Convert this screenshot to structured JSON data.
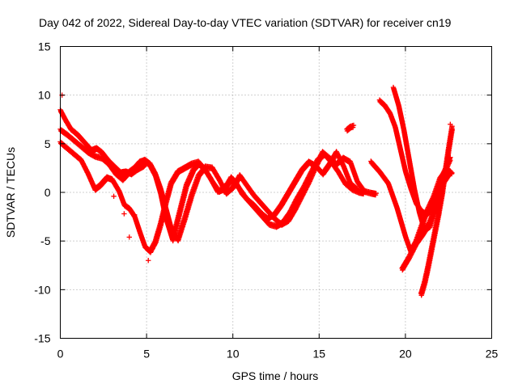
{
  "chart_data": {
    "type": "scatter",
    "title": "Day 042 of 2022, Sidereal Day-to-day VTEC variation (SDTVAR) for receiver cn19",
    "xlabel": "GPS time / hours",
    "ylabel": "SDTVAR / TECUs",
    "xlim": [
      0,
      25
    ],
    "ylim": [
      -15,
      15
    ],
    "xticks": [
      0,
      5,
      10,
      15,
      20,
      25
    ],
    "yticks": [
      -15,
      -10,
      -5,
      0,
      5,
      10,
      15
    ],
    "grid": true,
    "marker": "+",
    "color": "#ff0000",
    "series": [
      {
        "name": "track-1",
        "x": [
          0.0,
          0.3,
          0.6,
          1.0,
          1.4,
          1.8,
          2.1,
          2.4,
          2.8,
          3.2,
          3.5,
          3.8,
          4.1,
          4.4,
          4.8,
          5.0,
          5.2,
          5.5,
          5.8,
          6.1,
          6.5,
          6.9,
          7.3,
          7.7,
          8.0,
          8.3,
          8.7,
          9.1,
          9.5,
          9.9,
          10.2,
          10.5,
          10.9,
          11.3,
          11.7,
          12.1,
          12.5,
          12.9,
          13.3,
          13.7,
          14.1,
          14.5,
          14.9,
          15.3,
          15.7,
          16.1,
          16.5,
          16.9,
          17.3,
          17.6
        ],
        "y": [
          8.5,
          7.5,
          6.6,
          6.0,
          5.2,
          4.4,
          4.6,
          4.2,
          3.3,
          2.6,
          2.1,
          2.2,
          2.0,
          2.4,
          2.8,
          3.2,
          2.8,
          1.8,
          0.0,
          -2.5,
          -4.8,
          -2.0,
          0.8,
          2.4,
          3.0,
          2.6,
          1.5,
          0.2,
          0.4,
          1.6,
          1.0,
          0.0,
          -0.8,
          -1.6,
          -2.4,
          -3.2,
          -3.4,
          -3.0,
          -2.0,
          -0.6,
          0.6,
          2.0,
          3.4,
          4.0,
          3.2,
          2.2,
          1.0,
          0.4,
          0.1,
          0.0
        ]
      },
      {
        "name": "track-2",
        "x": [
          0.0,
          0.4,
          0.8,
          1.2,
          1.6,
          2.0,
          2.4,
          2.8,
          3.2,
          3.6,
          4.0,
          4.3,
          4.6,
          4.9,
          5.2,
          5.5,
          5.8,
          6.1,
          6.4,
          6.8,
          7.2,
          7.6,
          8.0,
          8.4,
          8.8,
          9.2,
          9.6,
          10.0,
          10.4,
          10.8,
          11.2,
          11.6,
          12.0,
          12.4,
          12.8,
          13.2,
          13.6,
          14.0,
          14.4,
          14.8,
          15.2,
          15.6,
          16.0,
          16.4,
          16.8,
          17.2,
          17.6,
          18.0,
          18.3
        ],
        "y": [
          6.5,
          6.0,
          5.4,
          4.8,
          4.2,
          3.8,
          3.6,
          3.0,
          2.0,
          1.4,
          2.2,
          2.6,
          3.2,
          3.4,
          3.0,
          2.0,
          0.5,
          -1.5,
          -3.5,
          -4.8,
          -2.6,
          -0.2,
          1.8,
          2.7,
          2.6,
          1.4,
          0.0,
          0.6,
          1.8,
          0.8,
          -0.2,
          -1.0,
          -1.8,
          -2.6,
          -3.2,
          -2.8,
          -1.6,
          -0.2,
          1.2,
          2.8,
          4.2,
          3.6,
          3.0,
          3.6,
          3.2,
          1.2,
          0.2,
          0.0,
          -0.1
        ]
      },
      {
        "name": "track-3",
        "x": [
          0.0,
          0.4,
          0.8,
          1.2,
          1.6,
          2.0,
          2.3,
          2.7,
          3.0,
          3.4,
          3.7,
          4.0,
          4.3,
          4.6,
          4.9,
          5.2,
          5.5,
          5.8,
          6.1,
          6.4,
          6.8,
          7.2,
          7.6,
          8.0,
          8.4,
          8.8,
          9.2,
          9.6,
          10.0,
          10.4,
          10.8,
          11.2,
          11.6,
          12.0,
          12.4,
          12.8,
          13.2,
          13.6,
          14.0,
          14.4,
          14.8,
          15.2,
          15.6,
          16.0,
          16.4,
          16.8,
          17.2
        ],
        "y": [
          5.2,
          4.6,
          4.0,
          3.4,
          2.0,
          0.4,
          0.8,
          1.6,
          1.4,
          0.2,
          -1.2,
          -1.6,
          -2.4,
          -4.0,
          -5.5,
          -6.0,
          -5.0,
          -3.2,
          -1.0,
          1.0,
          2.2,
          2.6,
          3.0,
          3.2,
          2.4,
          1.2,
          0.2,
          0.8,
          1.4,
          0.4,
          -0.6,
          -1.2,
          -2.0,
          -2.6,
          -2.2,
          -1.2,
          0.0,
          1.2,
          2.4,
          3.2,
          2.8,
          2.0,
          3.0,
          4.2,
          2.8,
          1.0,
          0.4
        ]
      },
      {
        "name": "track-4",
        "x": [
          16.6,
          16.8,
          17.0
        ],
        "y": [
          6.5,
          6.8,
          6.9
        ]
      },
      {
        "name": "track-5",
        "x": [
          18.5,
          18.8,
          19.1,
          19.4,
          19.7,
          20.0,
          20.3,
          20.6,
          20.9,
          21.2,
          21.5,
          21.8,
          22.1,
          22.4,
          22.6
        ],
        "y": [
          9.5,
          9.0,
          8.2,
          6.8,
          4.5,
          2.2,
          0.5,
          -1.0,
          -1.8,
          -2.2,
          -1.6,
          0.0,
          1.6,
          2.8,
          3.6
        ]
      },
      {
        "name": "track-6",
        "x": [
          19.3,
          19.6,
          19.9,
          20.2,
          20.5,
          20.8,
          21.1,
          21.4,
          21.7,
          22.0,
          22.3,
          22.6
        ],
        "y": [
          10.8,
          9.0,
          6.5,
          3.5,
          0.5,
          -2.0,
          -3.8,
          -3.4,
          -1.4,
          0.6,
          1.4,
          2.2
        ]
      },
      {
        "name": "track-7",
        "x": [
          18.0,
          18.5,
          19.0,
          19.5,
          20.0,
          20.3,
          20.6,
          20.9,
          21.2,
          21.6,
          22.0,
          22.4,
          22.7
        ],
        "y": [
          3.2,
          2.2,
          1.0,
          -1.5,
          -4.5,
          -6.0,
          -5.0,
          -3.5,
          -2.0,
          -0.5,
          1.5,
          2.5,
          2.0
        ]
      },
      {
        "name": "track-8",
        "x": [
          19.8,
          20.2,
          20.6,
          21.0,
          21.4,
          21.8,
          22.1
        ],
        "y": [
          -7.8,
          -6.6,
          -5.2,
          -4.2,
          -3.0,
          -1.2,
          0.2
        ]
      },
      {
        "name": "track-9",
        "x": [
          20.9,
          21.1,
          21.3,
          21.5,
          21.7,
          21.9,
          22.1,
          22.3,
          22.5,
          22.7
        ],
        "y": [
          -10.4,
          -9.2,
          -7.6,
          -5.8,
          -4.0,
          -2.2,
          -0.2,
          2.2,
          4.6,
          6.8
        ]
      }
    ],
    "isolated_points": [
      {
        "x": 0.1,
        "y": 10.0
      },
      {
        "x": 4.0,
        "y": -4.6
      },
      {
        "x": 4.3,
        "y": -2.3
      },
      {
        "x": 4.6,
        "y": -4.0
      },
      {
        "x": 5.1,
        "y": -7.0
      },
      {
        "x": 3.7,
        "y": -2.2
      },
      {
        "x": 3.1,
        "y": -0.4
      },
      {
        "x": 17.7,
        "y": 0.0
      },
      {
        "x": 22.6,
        "y": 7.0
      }
    ]
  }
}
